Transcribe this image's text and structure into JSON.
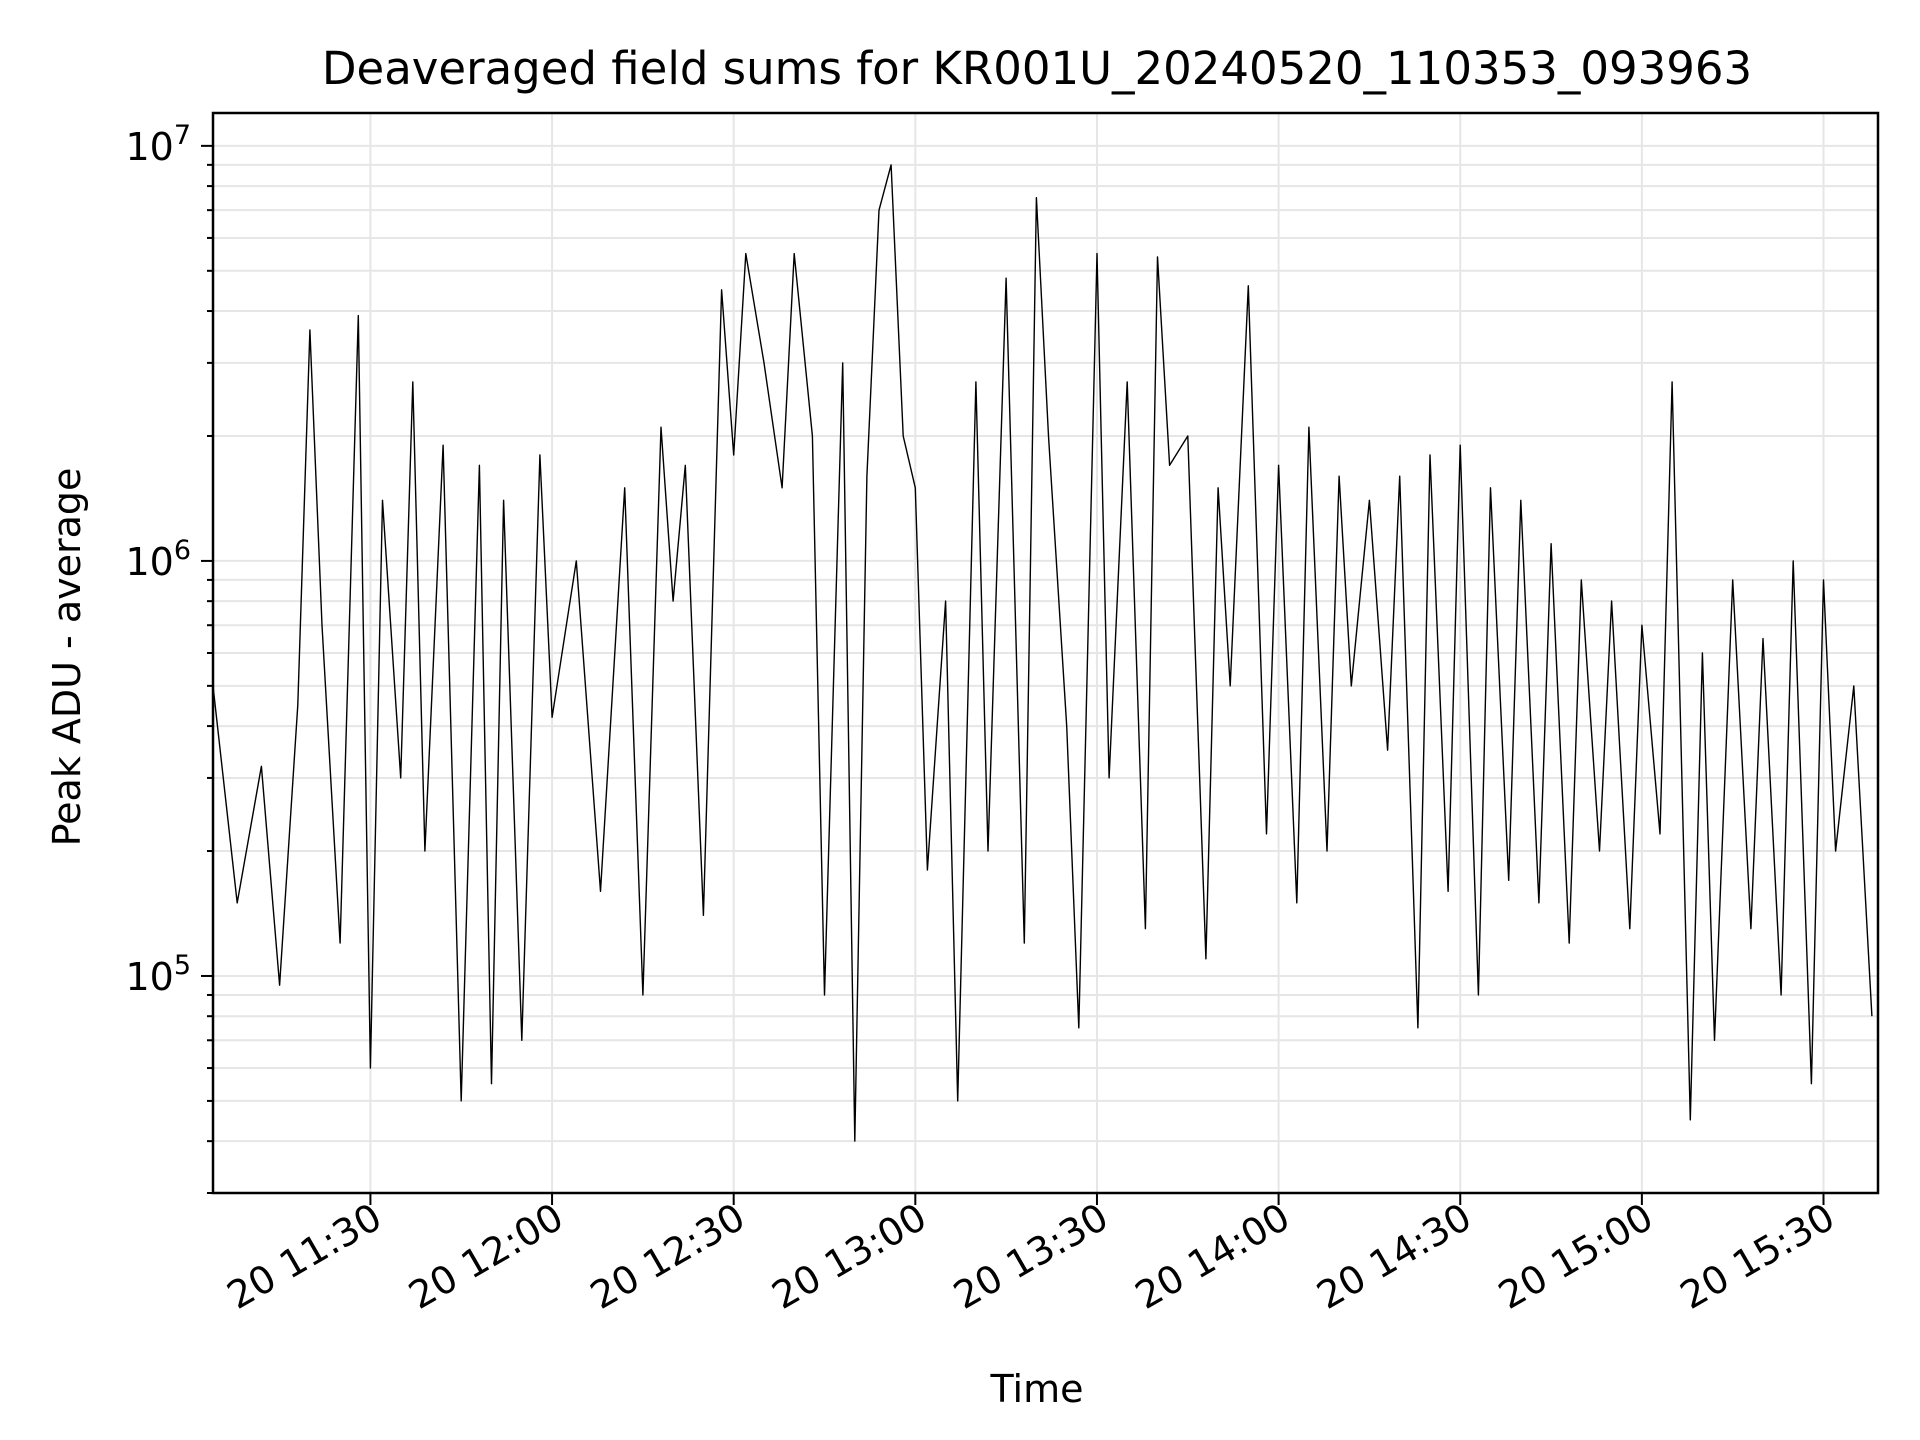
{
  "chart_data": {
    "type": "line",
    "title": "Deaveraged field sums for KR001U_20240520_110353_093963",
    "xlabel": "Time",
    "ylabel": "Peak ADU - average",
    "yscale": "log",
    "ylim": [
      30000,
      12000000
    ],
    "xlim": [
      "2024-05-20 11:04",
      "2024-05-20 15:39"
    ],
    "grid": true,
    "series_color": "#000000",
    "grid_color": "#e6e6e6",
    "x_ticks": [
      {
        "label": "20 11:30",
        "t": "2024-05-20 11:30"
      },
      {
        "label": "20 12:00",
        "t": "2024-05-20 12:00"
      },
      {
        "label": "20 12:30",
        "t": "2024-05-20 12:30"
      },
      {
        "label": "20 13:00",
        "t": "2024-05-20 13:00"
      },
      {
        "label": "20 13:30",
        "t": "2024-05-20 13:30"
      },
      {
        "label": "20 14:00",
        "t": "2024-05-20 14:00"
      },
      {
        "label": "20 14:30",
        "t": "2024-05-20 14:30"
      },
      {
        "label": "20 15:00",
        "t": "2024-05-20 15:00"
      },
      {
        "label": "20 15:30",
        "t": "2024-05-20 15:30"
      }
    ],
    "y_ticks": [
      {
        "base": "10",
        "exp": "5",
        "value": 100000
      },
      {
        "base": "10",
        "exp": "6",
        "value": 1000000
      },
      {
        "base": "10",
        "exp": "7",
        "value": 10000000
      }
    ],
    "series": [
      {
        "x": [
          "2024-05-20 11:04",
          "2024-05-20 11:08",
          "2024-05-20 11:12",
          "2024-05-20 11:15",
          "2024-05-20 11:18",
          "2024-05-20 11:20",
          "2024-05-20 11:22",
          "2024-05-20 11:25",
          "2024-05-20 11:28",
          "2024-05-20 11:30",
          "2024-05-20 11:32",
          "2024-05-20 11:35",
          "2024-05-20 11:37",
          "2024-05-20 11:39",
          "2024-05-20 11:42",
          "2024-05-20 11:45",
          "2024-05-20 11:48",
          "2024-05-20 11:50",
          "2024-05-20 11:52",
          "2024-05-20 11:55",
          "2024-05-20 11:58",
          "2024-05-20 12:00",
          "2024-05-20 12:04",
          "2024-05-20 12:08",
          "2024-05-20 12:12",
          "2024-05-20 12:15",
          "2024-05-20 12:18",
          "2024-05-20 12:20",
          "2024-05-20 12:22",
          "2024-05-20 12:25",
          "2024-05-20 12:28",
          "2024-05-20 12:30",
          "2024-05-20 12:32",
          "2024-05-20 12:35",
          "2024-05-20 12:38",
          "2024-05-20 12:40",
          "2024-05-20 12:43",
          "2024-05-20 12:45",
          "2024-05-20 12:48",
          "2024-05-20 12:50",
          "2024-05-20 12:52",
          "2024-05-20 12:54",
          "2024-05-20 12:56",
          "2024-05-20 12:58",
          "2024-05-20 13:00",
          "2024-05-20 13:02",
          "2024-05-20 13:05",
          "2024-05-20 13:07",
          "2024-05-20 13:10",
          "2024-05-20 13:12",
          "2024-05-20 13:15",
          "2024-05-20 13:18",
          "2024-05-20 13:20",
          "2024-05-20 13:22",
          "2024-05-20 13:25",
          "2024-05-20 13:27",
          "2024-05-20 13:30",
          "2024-05-20 13:32",
          "2024-05-20 13:35",
          "2024-05-20 13:38",
          "2024-05-20 13:40",
          "2024-05-20 13:42",
          "2024-05-20 13:45",
          "2024-05-20 13:48",
          "2024-05-20 13:50",
          "2024-05-20 13:52",
          "2024-05-20 13:55",
          "2024-05-20 13:58",
          "2024-05-20 14:00",
          "2024-05-20 14:03",
          "2024-05-20 14:05",
          "2024-05-20 14:08",
          "2024-05-20 14:10",
          "2024-05-20 14:12",
          "2024-05-20 14:15",
          "2024-05-20 14:18",
          "2024-05-20 14:20",
          "2024-05-20 14:23",
          "2024-05-20 14:25",
          "2024-05-20 14:28",
          "2024-05-20 14:30",
          "2024-05-20 14:33",
          "2024-05-20 14:35",
          "2024-05-20 14:38",
          "2024-05-20 14:40",
          "2024-05-20 14:43",
          "2024-05-20 14:45",
          "2024-05-20 14:48",
          "2024-05-20 14:50",
          "2024-05-20 14:53",
          "2024-05-20 14:55",
          "2024-05-20 14:58",
          "2024-05-20 15:00",
          "2024-05-20 15:03",
          "2024-05-20 15:05",
          "2024-05-20 15:08",
          "2024-05-20 15:10",
          "2024-05-20 15:12",
          "2024-05-20 15:15",
          "2024-05-20 15:18",
          "2024-05-20 15:20",
          "2024-05-20 15:23",
          "2024-05-20 15:25",
          "2024-05-20 15:28",
          "2024-05-20 15:30",
          "2024-05-20 15:32",
          "2024-05-20 15:35",
          "2024-05-20 15:38"
        ],
        "y": [
          500000,
          150000,
          320000,
          95000,
          450000,
          3600000,
          700000,
          120000,
          3900000,
          60000,
          1400000,
          300000,
          2700000,
          200000,
          1900000,
          50000,
          1700000,
          55000,
          1400000,
          70000,
          1800000,
          420000,
          1000000,
          160000,
          1500000,
          90000,
          2100000,
          800000,
          1700000,
          140000,
          4500000,
          1800000,
          5500000,
          3000000,
          1500000,
          5500000,
          2000000,
          90000,
          3000000,
          40000,
          1600000,
          7000000,
          9000000,
          2000000,
          1500000,
          180000,
          800000,
          50000,
          2700000,
          200000,
          4800000,
          120000,
          7500000,
          2000000,
          400000,
          75000,
          5500000,
          300000,
          2700000,
          130000,
          5400000,
          1700000,
          2000000,
          110000,
          1500000,
          500000,
          4600000,
          220000,
          1700000,
          150000,
          2100000,
          200000,
          1600000,
          500000,
          1400000,
          350000,
          1600000,
          75000,
          1800000,
          160000,
          1900000,
          90000,
          1500000,
          170000,
          1400000,
          150000,
          1100000,
          120000,
          900000,
          200000,
          800000,
          130000,
          700000,
          220000,
          2700000,
          45000,
          600000,
          70000,
          900000,
          130000,
          650000,
          90000,
          1000000,
          55000,
          900000,
          200000,
          500000,
          80000
        ]
      }
    ]
  }
}
